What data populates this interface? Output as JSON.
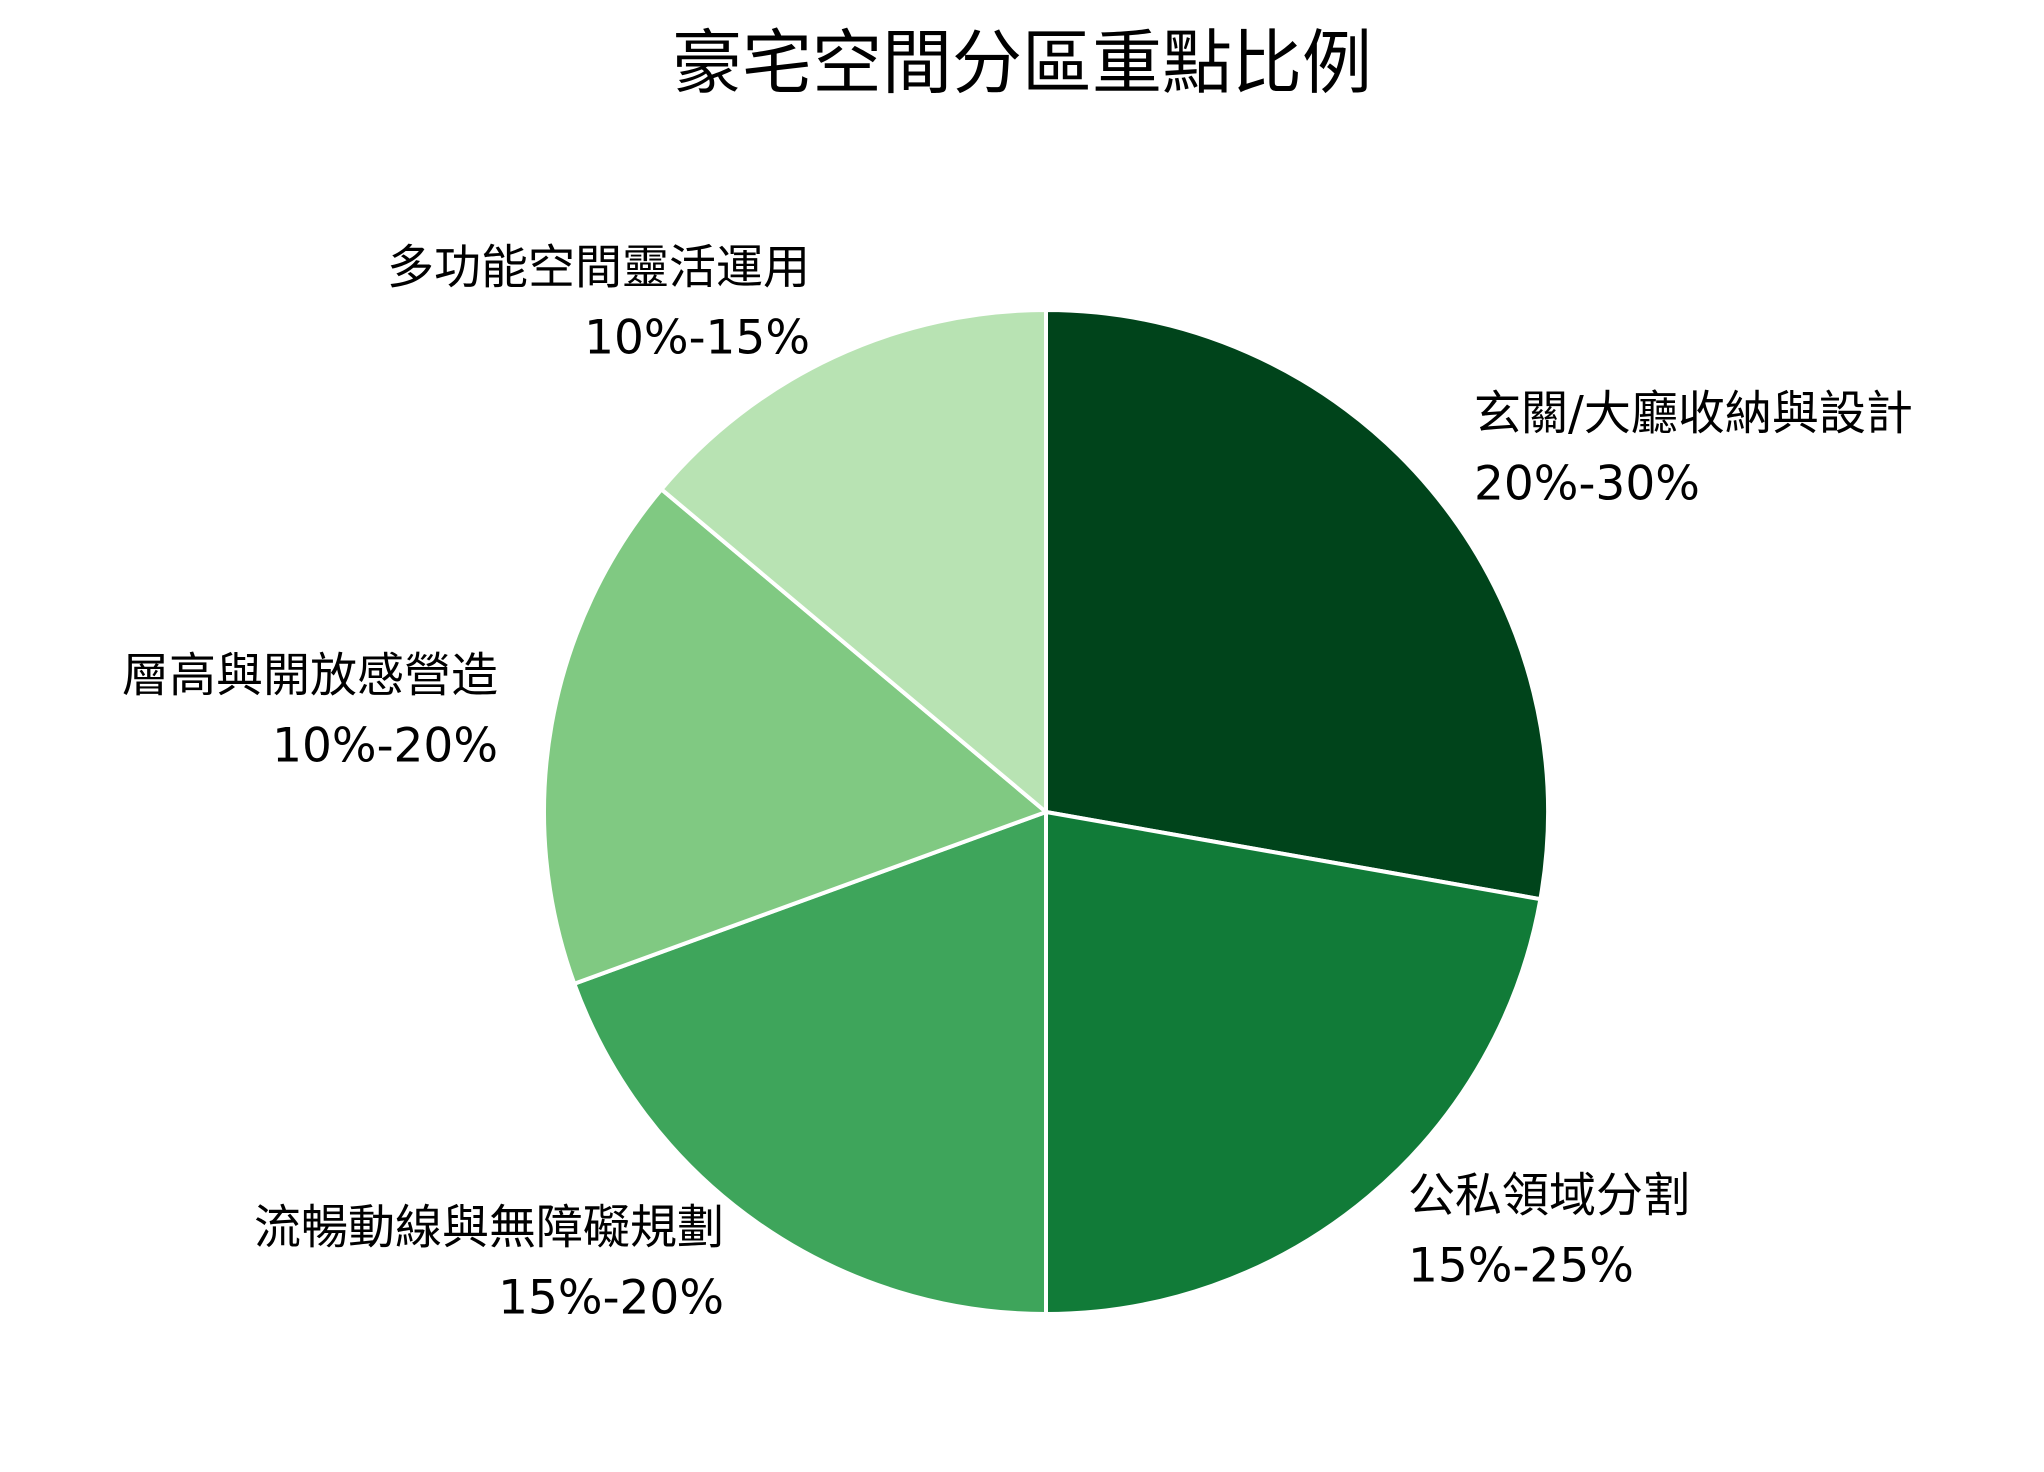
{
  "chart_data": {
    "type": "pie",
    "title": "豪宅空間分區重點比例",
    "categories": [
      "玄關/大廳收納與設計",
      "公私領域分割",
      "流暢動線與無障礙規劃",
      "層高與開放感營造",
      "多功能空間靈活運用"
    ],
    "values": [
      25,
      20,
      17.5,
      15,
      12.5
    ],
    "value_labels": [
      "20%-30%",
      "15%-25%",
      "15%-20%",
      "10%-20%",
      "10%-15%"
    ],
    "colors": [
      "#00441b",
      "#117b38",
      "#3ea55b",
      "#80c982",
      "#b8e3b3"
    ]
  }
}
